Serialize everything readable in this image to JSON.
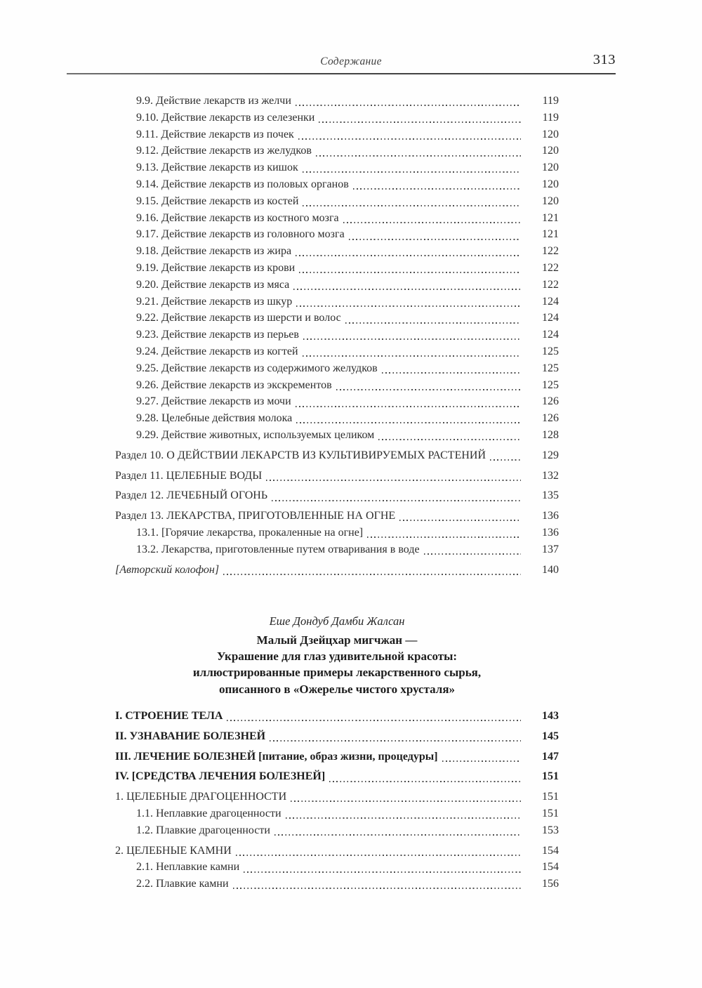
{
  "header": {
    "running_title": "Содержание",
    "page_number": "313"
  },
  "toc_top": {
    "entries": [
      {
        "label": "9.9. Действие лекарств из желчи",
        "page": "119",
        "level": 2,
        "style": "normal"
      },
      {
        "label": "9.10. Действие лекарств из селезенки",
        "page": "119",
        "level": 2,
        "style": "normal"
      },
      {
        "label": "9.11. Действие лекарств из почек",
        "page": "120",
        "level": 2,
        "style": "normal"
      },
      {
        "label": "9.12. Действие лекарств из желудков",
        "page": "120",
        "level": 2,
        "style": "normal"
      },
      {
        "label": "9.13. Действие лекарств из кишок",
        "page": "120",
        "level": 2,
        "style": "normal"
      },
      {
        "label": "9.14. Действие лекарств из половых органов",
        "page": "120",
        "level": 2,
        "style": "normal"
      },
      {
        "label": "9.15. Действие лекарств из костей",
        "page": "120",
        "level": 2,
        "style": "normal"
      },
      {
        "label": "9.16. Действие лекарств из костного мозга",
        "page": "121",
        "level": 2,
        "style": "normal"
      },
      {
        "label": "9.17. Действие лекарств из головного мозга",
        "page": "121",
        "level": 2,
        "style": "normal"
      },
      {
        "label": "9.18. Действие лекарств из жира",
        "page": "122",
        "level": 2,
        "style": "normal"
      },
      {
        "label": "9.19. Действие лекарств из крови",
        "page": "122",
        "level": 2,
        "style": "normal"
      },
      {
        "label": "9.20. Действие лекарств из мяса",
        "page": "122",
        "level": 2,
        "style": "normal"
      },
      {
        "label": "9.21. Действие лекарств из шкур",
        "page": "124",
        "level": 2,
        "style": "normal"
      },
      {
        "label": "9.22. Действие лекарств из шерсти и волос",
        "page": "124",
        "level": 2,
        "style": "normal"
      },
      {
        "label": "9.23. Действие лекарств из перьев",
        "page": "124",
        "level": 2,
        "style": "normal"
      },
      {
        "label": "9.24. Действие лекарств из когтей",
        "page": "125",
        "level": 2,
        "style": "normal"
      },
      {
        "label": "9.25. Действие лекарств из содержимого желудков",
        "page": "125",
        "level": 2,
        "style": "normal"
      },
      {
        "label": "9.26. Действие лекарств из экскрементов",
        "page": "125",
        "level": 2,
        "style": "normal"
      },
      {
        "label": "9.27. Действие лекарств из мочи",
        "page": "126",
        "level": 2,
        "style": "normal"
      },
      {
        "label": "9.28. Целебные действия молока",
        "page": "126",
        "level": 2,
        "style": "normal"
      },
      {
        "label": "9.29. Действие животных, используемых целиком",
        "page": "128",
        "level": 2,
        "style": "normal"
      },
      {
        "label": "Раздел 10. О ДЕЙСТВИИ ЛЕКАРСТВ ИЗ КУЛЬТИВИРУЕМЫХ РАСТЕНИЙ",
        "page": "129",
        "level": 1,
        "style": "normal"
      },
      {
        "label": "Раздел 11. ЦЕЛЕБНЫЕ ВОДЫ",
        "page": "132",
        "level": 1,
        "style": "normal"
      },
      {
        "label": "Раздел 12. ЛЕЧЕБНЫЙ ОГОНЬ",
        "page": "135",
        "level": 1,
        "style": "normal"
      },
      {
        "label": "Раздел 13. ЛЕКАРСТВА, ПРИГОТОВЛЕННЫЕ НА ОГНЕ",
        "page": "136",
        "level": 1,
        "style": "normal"
      },
      {
        "label": "13.1. [Горячие лекарства, прокаленные на огне]",
        "page": "136",
        "level": 2,
        "style": "normal"
      },
      {
        "label": "13.2. Лекарства, приготовленные путем отваривания в воде",
        "page": "137",
        "level": 2,
        "style": "normal"
      },
      {
        "label": "[Авторский колофон]",
        "page": "140",
        "level": 1,
        "style": "italic"
      }
    ]
  },
  "interlude": {
    "author": "Еше Дондуб Дамби Жалсан",
    "title_lines": [
      "Малый Дзейцхар мигчжан —",
      "Украшение для глаз удивительной красоты:",
      "иллюстрированные примеры лекарственного сырья,",
      "описанного в «Ожерелье чистого хрусталя»"
    ]
  },
  "toc_bottom": {
    "entries": [
      {
        "label": "I. СТРОЕНИЕ ТЕЛА",
        "page": "143",
        "level": 1,
        "style": "bold"
      },
      {
        "label": "II. УЗНАВАНИЕ БОЛЕЗНЕЙ",
        "page": "145",
        "level": 1,
        "style": "bold"
      },
      {
        "label": "III. ЛЕЧЕНИЕ БОЛЕЗНЕЙ [питание, образ жизни, процедуры]",
        "page": "147",
        "level": 1,
        "style": "bold"
      },
      {
        "label": "IV. [СРЕДСТВА ЛЕЧЕНИЯ БОЛЕЗНЕЙ]",
        "page": "151",
        "level": 1,
        "style": "bold"
      },
      {
        "label": "1. ЦЕЛЕБНЫЕ ДРАГОЦЕННОСТИ",
        "page": "151",
        "level": 1,
        "style": "normal"
      },
      {
        "label": "1.1. Неплавкие драгоценности",
        "page": "151",
        "level": 2,
        "style": "normal"
      },
      {
        "label": "1.2. Плавкие драгоценности",
        "page": "153",
        "level": 2,
        "style": "normal"
      },
      {
        "label": "2. ЦЕЛЕБНЫЕ КАМНИ",
        "page": "154",
        "level": 1,
        "style": "normal"
      },
      {
        "label": "2.1. Неплавкие камни",
        "page": "154",
        "level": 2,
        "style": "normal"
      },
      {
        "label": "2.2. Плавкие камни",
        "page": "156",
        "level": 2,
        "style": "normal"
      }
    ]
  }
}
